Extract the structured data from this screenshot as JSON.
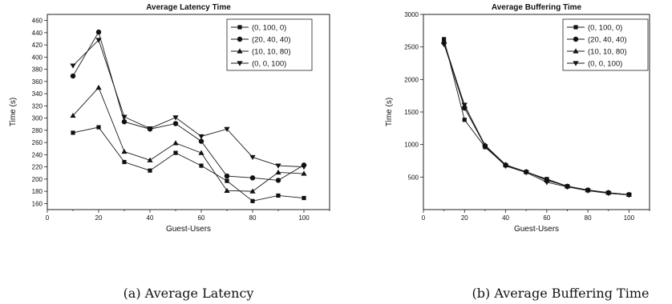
{
  "chart_data": [
    {
      "type": "line",
      "title": "Average Latency Time",
      "xlabel": "Guest-Users",
      "ylabel": "Time (s)",
      "xlim": [
        0,
        110
      ],
      "ylim": [
        150,
        470
      ],
      "xticks": [
        0,
        20,
        40,
        60,
        80,
        100
      ],
      "yticks": [
        160,
        180,
        200,
        220,
        240,
        260,
        280,
        300,
        320,
        340,
        360,
        380,
        400,
        420,
        440,
        460
      ],
      "legend_position": "top-right",
      "caption": "(a) Average Latency",
      "x": [
        10,
        20,
        30,
        40,
        50,
        60,
        70,
        80,
        90,
        100
      ],
      "series": [
        {
          "name": "(0, 100, 0)",
          "marker": "square",
          "values": [
            276,
            285,
            228,
            214,
            243,
            222,
            197,
            164,
            173,
            169
          ]
        },
        {
          "name": "(20, 40, 40)",
          "marker": "circle",
          "values": [
            369,
            441,
            294,
            282,
            291,
            262,
            205,
            202,
            198,
            223
          ]
        },
        {
          "name": "(10, 10, 80)",
          "marker": "triangle-up",
          "values": [
            304,
            350,
            245,
            231,
            259,
            243,
            181,
            180,
            211,
            209
          ]
        },
        {
          "name": "(0, 0, 100)",
          "marker": "triangle-down",
          "values": [
            386,
            428,
            302,
            283,
            301,
            270,
            282,
            236,
            222,
            220
          ]
        }
      ]
    },
    {
      "type": "line",
      "title": "Average Buffering Time",
      "xlabel": "Guest-Users",
      "ylabel": "Time (s)",
      "xlim": [
        0,
        110
      ],
      "ylim": [
        0,
        3000
      ],
      "xticks": [
        0,
        20,
        40,
        60,
        80,
        100
      ],
      "yticks": [
        500,
        1000,
        1500,
        2000,
        2500,
        3000
      ],
      "legend_position": "top-right",
      "caption": "(b) Average Buffering Time",
      "x": [
        10,
        20,
        30,
        40,
        50,
        60,
        70,
        80,
        90,
        100
      ],
      "series": [
        {
          "name": "(0, 100, 0)",
          "marker": "square",
          "values": [
            2620,
            1380,
            960,
            680,
            580,
            470,
            360,
            300,
            260,
            230
          ]
        },
        {
          "name": "(20, 40, 40)",
          "marker": "circle",
          "values": [
            2560,
            1560,
            980,
            685,
            580,
            460,
            355,
            300,
            260,
            230
          ]
        },
        {
          "name": "(10, 10, 80)",
          "marker": "triangle-up",
          "values": [
            2580,
            1600,
            990,
            690,
            580,
            450,
            360,
            300,
            260,
            230
          ]
        },
        {
          "name": "(0, 0, 100)",
          "marker": "triangle-down",
          "values": [
            2540,
            1610,
            970,
            670,
            570,
            420,
            350,
            290,
            250,
            225
          ]
        }
      ]
    }
  ]
}
